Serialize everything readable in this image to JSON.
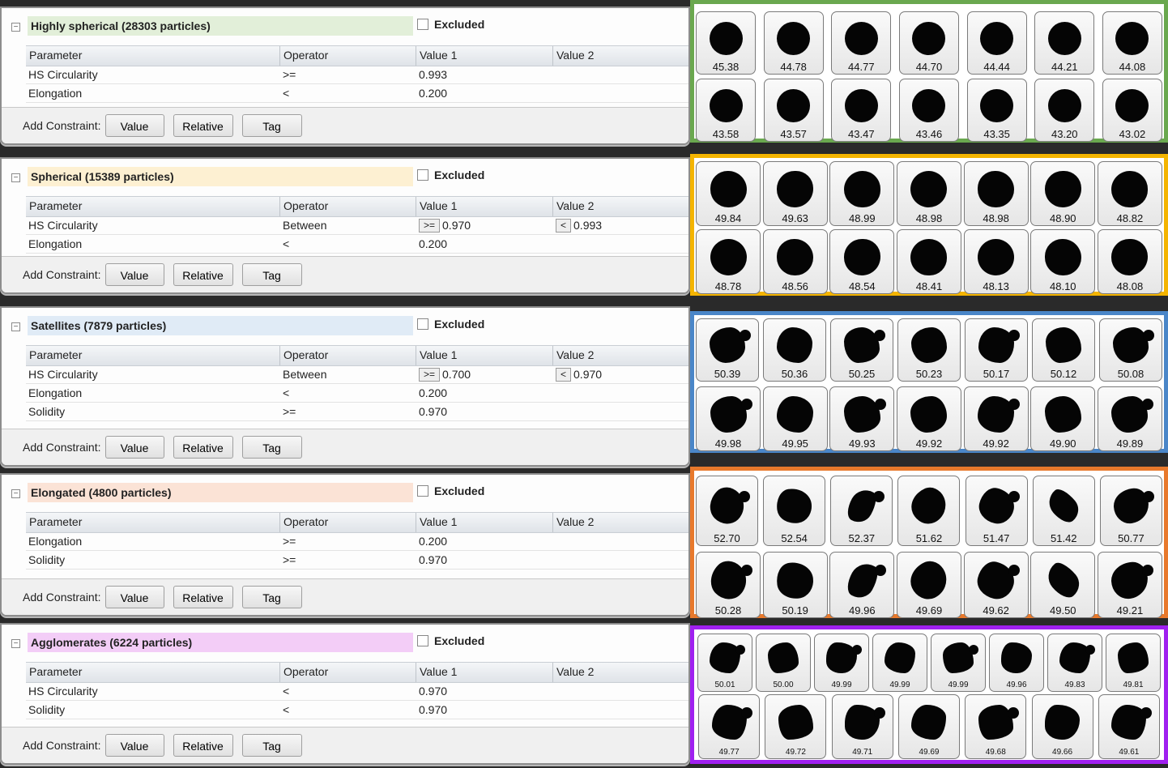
{
  "constraint_labels": {
    "add": "Add Constraint:",
    "value": "Value",
    "relative": "Relative",
    "tag": "Tag"
  },
  "excluded_label": "Excluded",
  "toggle_glyph": "⊟",
  "columns": [
    "Parameter",
    "Operator",
    "Value 1",
    "Value 2"
  ],
  "groups": [
    {
      "title": "Highly spherical (28303 particles)",
      "title_bg": "#e2efd9",
      "border": "#6aa84f",
      "rows": [
        [
          "HS Circularity",
          ">=",
          "0.993",
          ""
        ],
        [
          "Elongation",
          "<",
          "0.200",
          ""
        ]
      ],
      "particles": [
        "45.38",
        "44.78",
        "44.77",
        "44.70",
        "44.44",
        "44.21",
        "44.08",
        "43.58",
        "43.57",
        "43.47",
        "43.46",
        "43.35",
        "43.20",
        "43.02"
      ]
    },
    {
      "title": "Spherical (15389 particles)",
      "title_bg": "#fdf0d2",
      "border": "#f4b400",
      "rows": [
        [
          "HS Circularity",
          "Between",
          ">=|0.970",
          "<|0.993"
        ],
        [
          "Elongation",
          "<",
          "0.200",
          ""
        ]
      ],
      "particles": [
        "49.84",
        "49.63",
        "48.99",
        "48.98",
        "48.98",
        "48.90",
        "48.82",
        "48.78",
        "48.56",
        "48.54",
        "48.41",
        "48.13",
        "48.10",
        "48.08"
      ]
    },
    {
      "title": "Satellites (7879 particles)",
      "title_bg": "#e0ebf6",
      "border": "#4a86c8",
      "rows": [
        [
          "HS Circularity",
          "Between",
          ">=|0.700",
          "<|0.970"
        ],
        [
          "Elongation",
          "<",
          "0.200",
          ""
        ],
        [
          "Solidity",
          ">=",
          "0.970",
          ""
        ]
      ],
      "particles": [
        "50.39",
        "50.36",
        "50.25",
        "50.23",
        "50.17",
        "50.12",
        "50.08",
        "49.98",
        "49.95",
        "49.93",
        "49.92",
        "49.92",
        "49.90",
        "49.89"
      ]
    },
    {
      "title": "Elongated (4800 particles)",
      "title_bg": "#fbe3d6",
      "border": "#e8792c",
      "rows": [
        [
          "Elongation",
          ">=",
          "0.200",
          ""
        ],
        [
          "Solidity",
          ">=",
          "0.970",
          ""
        ]
      ],
      "particles": [
        "52.70",
        "52.54",
        "52.37",
        "51.62",
        "51.47",
        "51.42",
        "50.77",
        "50.28",
        "50.19",
        "49.96",
        "49.69",
        "49.62",
        "49.50",
        "49.21"
      ]
    },
    {
      "title": "Agglomerates (6224 particles)",
      "title_bg": "#f3cdf7",
      "border": "#a020f0",
      "rows": [
        [
          "HS Circularity",
          "<",
          "0.970",
          ""
        ],
        [
          "Solidity",
          "<",
          "0.970",
          ""
        ]
      ],
      "particles": [
        "50.01",
        "50.00",
        "49.99",
        "49.99",
        "49.99",
        "49.96",
        "49.83",
        "49.81",
        "49.77",
        "49.72",
        "49.71",
        "49.69",
        "49.68",
        "49.66",
        "49.61"
      ]
    }
  ]
}
